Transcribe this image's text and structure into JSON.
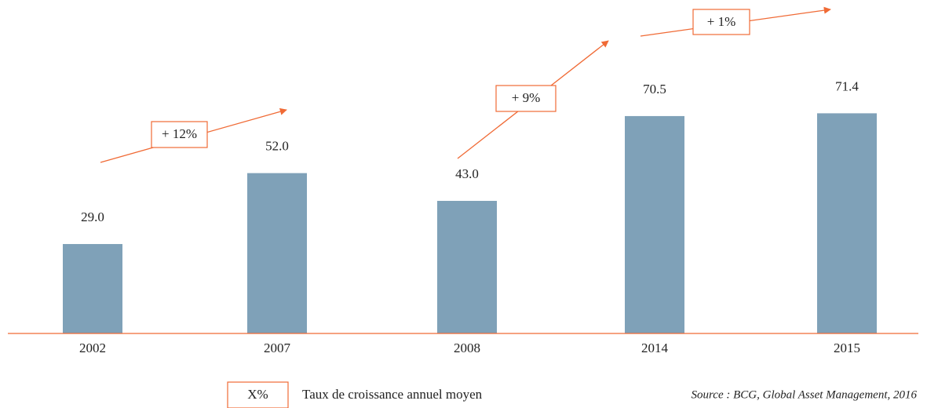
{
  "chart_data": {
    "type": "bar",
    "categories": [
      "2002",
      "2007",
      "2008",
      "2014",
      "2015"
    ],
    "values": [
      29,
      52,
      43,
      70.5,
      71.4
    ],
    "value_labels": [
      "29.0",
      "52.0",
      "43.0",
      "70.5",
      "71.4"
    ],
    "color": "#7fa1b8",
    "annotations": [
      "+ 12%",
      "+ 9%",
      "+ 1%"
    ],
    "legend": {
      "symbol": "X%",
      "label": "Taux de croissance annuel moyen"
    },
    "source": "Source : BCG, Global Asset Management, 2016"
  }
}
